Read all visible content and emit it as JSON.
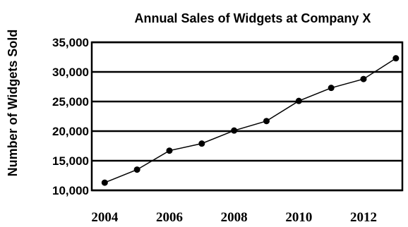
{
  "chart_data": {
    "type": "line",
    "title": "Annual Sales of Widgets at Company X",
    "xlabel": "",
    "ylabel": "Number of Widgets Sold",
    "x_tick_labels": [
      "2004",
      "2006",
      "2008",
      "2010",
      "2012"
    ],
    "y_tick_labels": [
      "35,000",
      "30,000",
      "25,000",
      "20,000",
      "15,000",
      "10,000"
    ],
    "y_ticks": [
      35000,
      30000,
      25000,
      20000,
      15000,
      10000
    ],
    "x_ticks": [
      2004,
      2006,
      2008,
      2010,
      2012
    ],
    "ylim": [
      10000,
      35000
    ],
    "xlim": [
      2003.6,
      2013.2
    ],
    "grid": "horizontal",
    "series": [
      {
        "x": [
          2004,
          2005,
          2006,
          2007,
          2008,
          2009,
          2010,
          2011,
          2012,
          2013
        ],
        "values": [
          11300,
          13500,
          16700,
          17900,
          20100,
          21700,
          25100,
          27300,
          28800,
          32300
        ]
      }
    ],
    "colors": {
      "line": "#000000",
      "grid": "#000000",
      "background": "#ffffff"
    }
  }
}
